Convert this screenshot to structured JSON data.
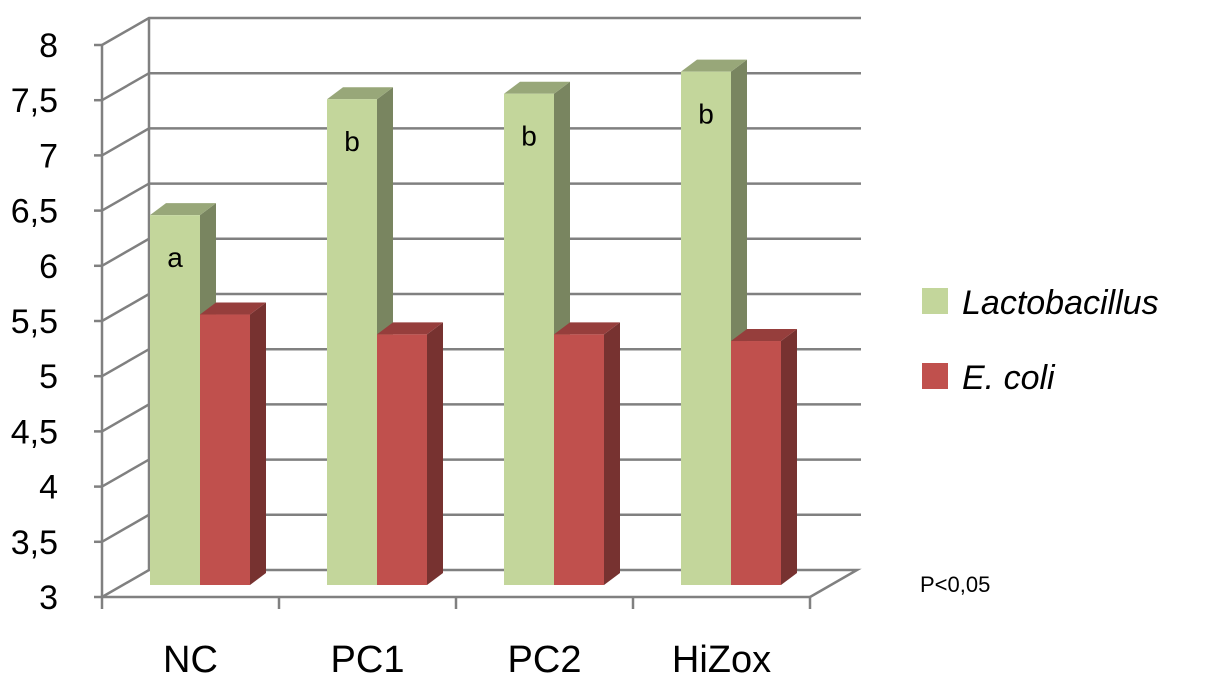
{
  "chart_data": {
    "type": "bar",
    "title": "",
    "xlabel": "",
    "ylabel": "",
    "categories": [
      "NC",
      "PC1",
      "PC2",
      "HiZox"
    ],
    "series": [
      {
        "name": "Lactobacillus",
        "values": [
          6.35,
          7.4,
          7.45,
          7.65
        ],
        "color": "#c3d69b"
      },
      {
        "name": "E. coli",
        "values": [
          5.45,
          5.27,
          5.27,
          5.21
        ],
        "color": "#c0504d"
      }
    ],
    "significance_labels": [
      "a",
      "b",
      "b",
      "b"
    ],
    "ylim": [
      3,
      8
    ],
    "yticks": [
      "3",
      "3,5",
      "4",
      "4,5",
      "5",
      "5,5",
      "6",
      "6,5",
      "7",
      "7,5",
      "8"
    ],
    "grid": true,
    "legend_position": "right",
    "style": "3d-clustered-column"
  },
  "annotation": "P<0,05"
}
